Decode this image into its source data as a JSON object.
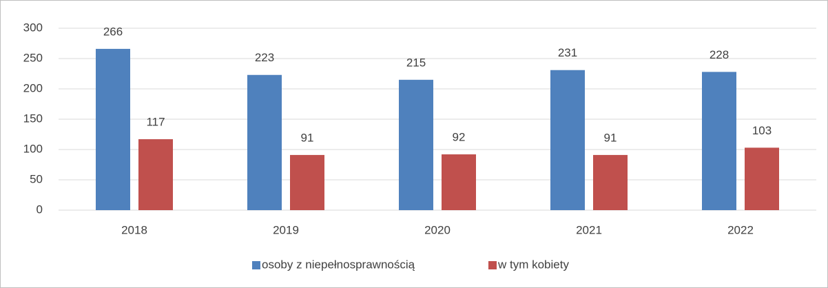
{
  "chart_data": {
    "type": "bar",
    "categories": [
      "2018",
      "2019",
      "2020",
      "2021",
      "2022"
    ],
    "series": [
      {
        "name": "osoby z niepełnosprawnością",
        "color": "#4f81bd",
        "values": [
          266,
          223,
          215,
          231,
          228
        ]
      },
      {
        "name": "w tym kobiety",
        "color": "#c0504d",
        "values": [
          117,
          91,
          92,
          91,
          103
        ]
      }
    ],
    "ylim": [
      0,
      300
    ],
    "yticks": [
      0,
      50,
      100,
      150,
      200,
      250,
      300
    ],
    "grid": true,
    "legend": "bottom"
  }
}
